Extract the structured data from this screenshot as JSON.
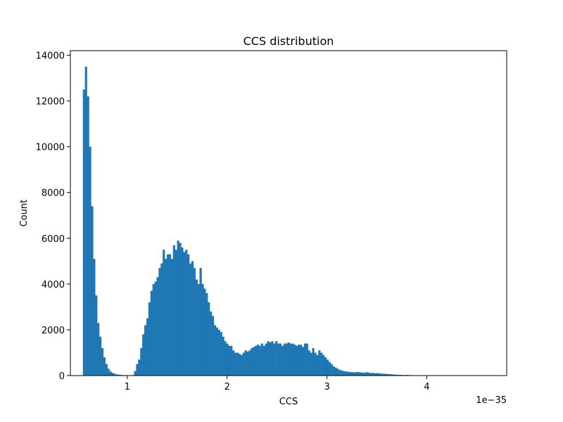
{
  "chart_data": {
    "type": "bar",
    "title": "CCS distribution",
    "xlabel": "CCS",
    "ylabel": "Count",
    "x_offset_text": "1e−35",
    "xlim": [
      0.43,
      4.8
    ],
    "ylim": [
      0,
      14200
    ],
    "x_ticks": [
      1,
      2,
      3,
      4
    ],
    "x_tick_labels": [
      "1",
      "2",
      "3",
      "4"
    ],
    "y_ticks": [
      0,
      2000,
      4000,
      6000,
      8000,
      10000,
      12000,
      14000
    ],
    "y_tick_labels": [
      "0",
      "2000",
      "4000",
      "6000",
      "8000",
      "10000",
      "12000",
      "14000"
    ],
    "bar_color": "#1f77b4",
    "bin_start": 0.555,
    "bin_width": 0.0205,
    "values": [
      12500,
      13500,
      12200,
      10000,
      7400,
      5100,
      3500,
      2300,
      1700,
      1200,
      800,
      500,
      300,
      180,
      120,
      80,
      50,
      40,
      30,
      20,
      20,
      15,
      15,
      15,
      20,
      200,
      500,
      700,
      1200,
      1800,
      2200,
      2500,
      3200,
      3700,
      4000,
      4100,
      4300,
      4700,
      4900,
      5500,
      5100,
      5300,
      5300,
      5100,
      5700,
      5500,
      5900,
      5800,
      5600,
      5400,
      5500,
      5300,
      4900,
      5000,
      4700,
      4200,
      4000,
      4700,
      4000,
      3800,
      3600,
      3200,
      2800,
      2600,
      2200,
      2100,
      2000,
      1900,
      1700,
      1500,
      1400,
      1300,
      1300,
      1100,
      1000,
      1000,
      950,
      900,
      1000,
      1100,
      1050,
      1100,
      1200,
      1250,
      1300,
      1350,
      1300,
      1400,
      1300,
      1400,
      1500,
      1450,
      1500,
      1400,
      1500,
      1400,
      1400,
      1300,
      1400,
      1400,
      1450,
      1400,
      1400,
      1350,
      1300,
      1350,
      1350,
      1250,
      1400,
      1400,
      1100,
      1000,
      1200,
      1000,
      900,
      1100,
      1000,
      900,
      800,
      700,
      600,
      500,
      400,
      350,
      300,
      250,
      220,
      200,
      180,
      170,
      160,
      150,
      140,
      150,
      160,
      140,
      130,
      120,
      150,
      130,
      110,
      120,
      100,
      110,
      100,
      90,
      80,
      80,
      70,
      60,
      60,
      50,
      40,
      40,
      30,
      30,
      25,
      20,
      30,
      20,
      20,
      15,
      15
    ]
  }
}
